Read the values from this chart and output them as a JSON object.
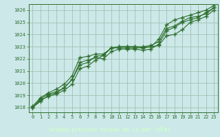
{
  "title": "Graphe pression niveau de la mer (hPa)",
  "fig_bg_color": "#cce8e8",
  "plot_bg_color": "#cce8e8",
  "xlabel_bg_color": "#336633",
  "grid_color": "#99bbaa",
  "line_color": "#2d6e2d",
  "marker_color": "#2d6e2d",
  "xlabel_text_color": "#ccffcc",
  "tick_color": "#2d6e2d",
  "xlim": [
    -0.5,
    23.5
  ],
  "ylim": [
    1017.6,
    1026.5
  ],
  "xticks": [
    0,
    1,
    2,
    3,
    4,
    5,
    6,
    7,
    8,
    9,
    10,
    11,
    12,
    13,
    14,
    15,
    16,
    17,
    18,
    19,
    20,
    21,
    22,
    23
  ],
  "yticks": [
    1018,
    1019,
    1020,
    1021,
    1022,
    1023,
    1024,
    1025,
    1026
  ],
  "series": [
    [
      1018.0,
      1018.6,
      1018.9,
      1019.1,
      1019.4,
      1019.9,
      1021.2,
      1021.4,
      1021.9,
      1022.3,
      1022.9,
      1022.9,
      1022.9,
      1022.9,
      1022.9,
      1023.0,
      1023.1,
      1023.9,
      1024.0,
      1024.4,
      1025.0,
      1025.2,
      1025.5,
      1026.0
    ],
    [
      1018.0,
      1018.7,
      1019.1,
      1019.3,
      1019.6,
      1020.3,
      1021.5,
      1021.7,
      1022.2,
      1022.3,
      1022.9,
      1023.0,
      1023.0,
      1023.0,
      1023.0,
      1023.1,
      1023.4,
      1024.5,
      1024.7,
      1025.1,
      1025.4,
      1025.5,
      1025.7,
      1026.2
    ],
    [
      1018.1,
      1018.8,
      1019.2,
      1019.5,
      1019.9,
      1020.6,
      1022.1,
      1022.2,
      1022.4,
      1022.4,
      1022.9,
      1023.0,
      1023.0,
      1023.0,
      1022.9,
      1023.0,
      1023.6,
      1024.8,
      1025.2,
      1025.4,
      1025.6,
      1025.8,
      1026.0,
      1026.4
    ],
    [
      1018.0,
      1018.5,
      1019.0,
      1019.2,
      1019.6,
      1020.3,
      1021.7,
      1021.9,
      1022.1,
      1022.0,
      1022.6,
      1022.8,
      1022.8,
      1022.8,
      1022.7,
      1022.8,
      1023.2,
      1024.3,
      1024.6,
      1025.0,
      1025.2,
      1025.4,
      1025.8,
      1026.2
    ]
  ]
}
